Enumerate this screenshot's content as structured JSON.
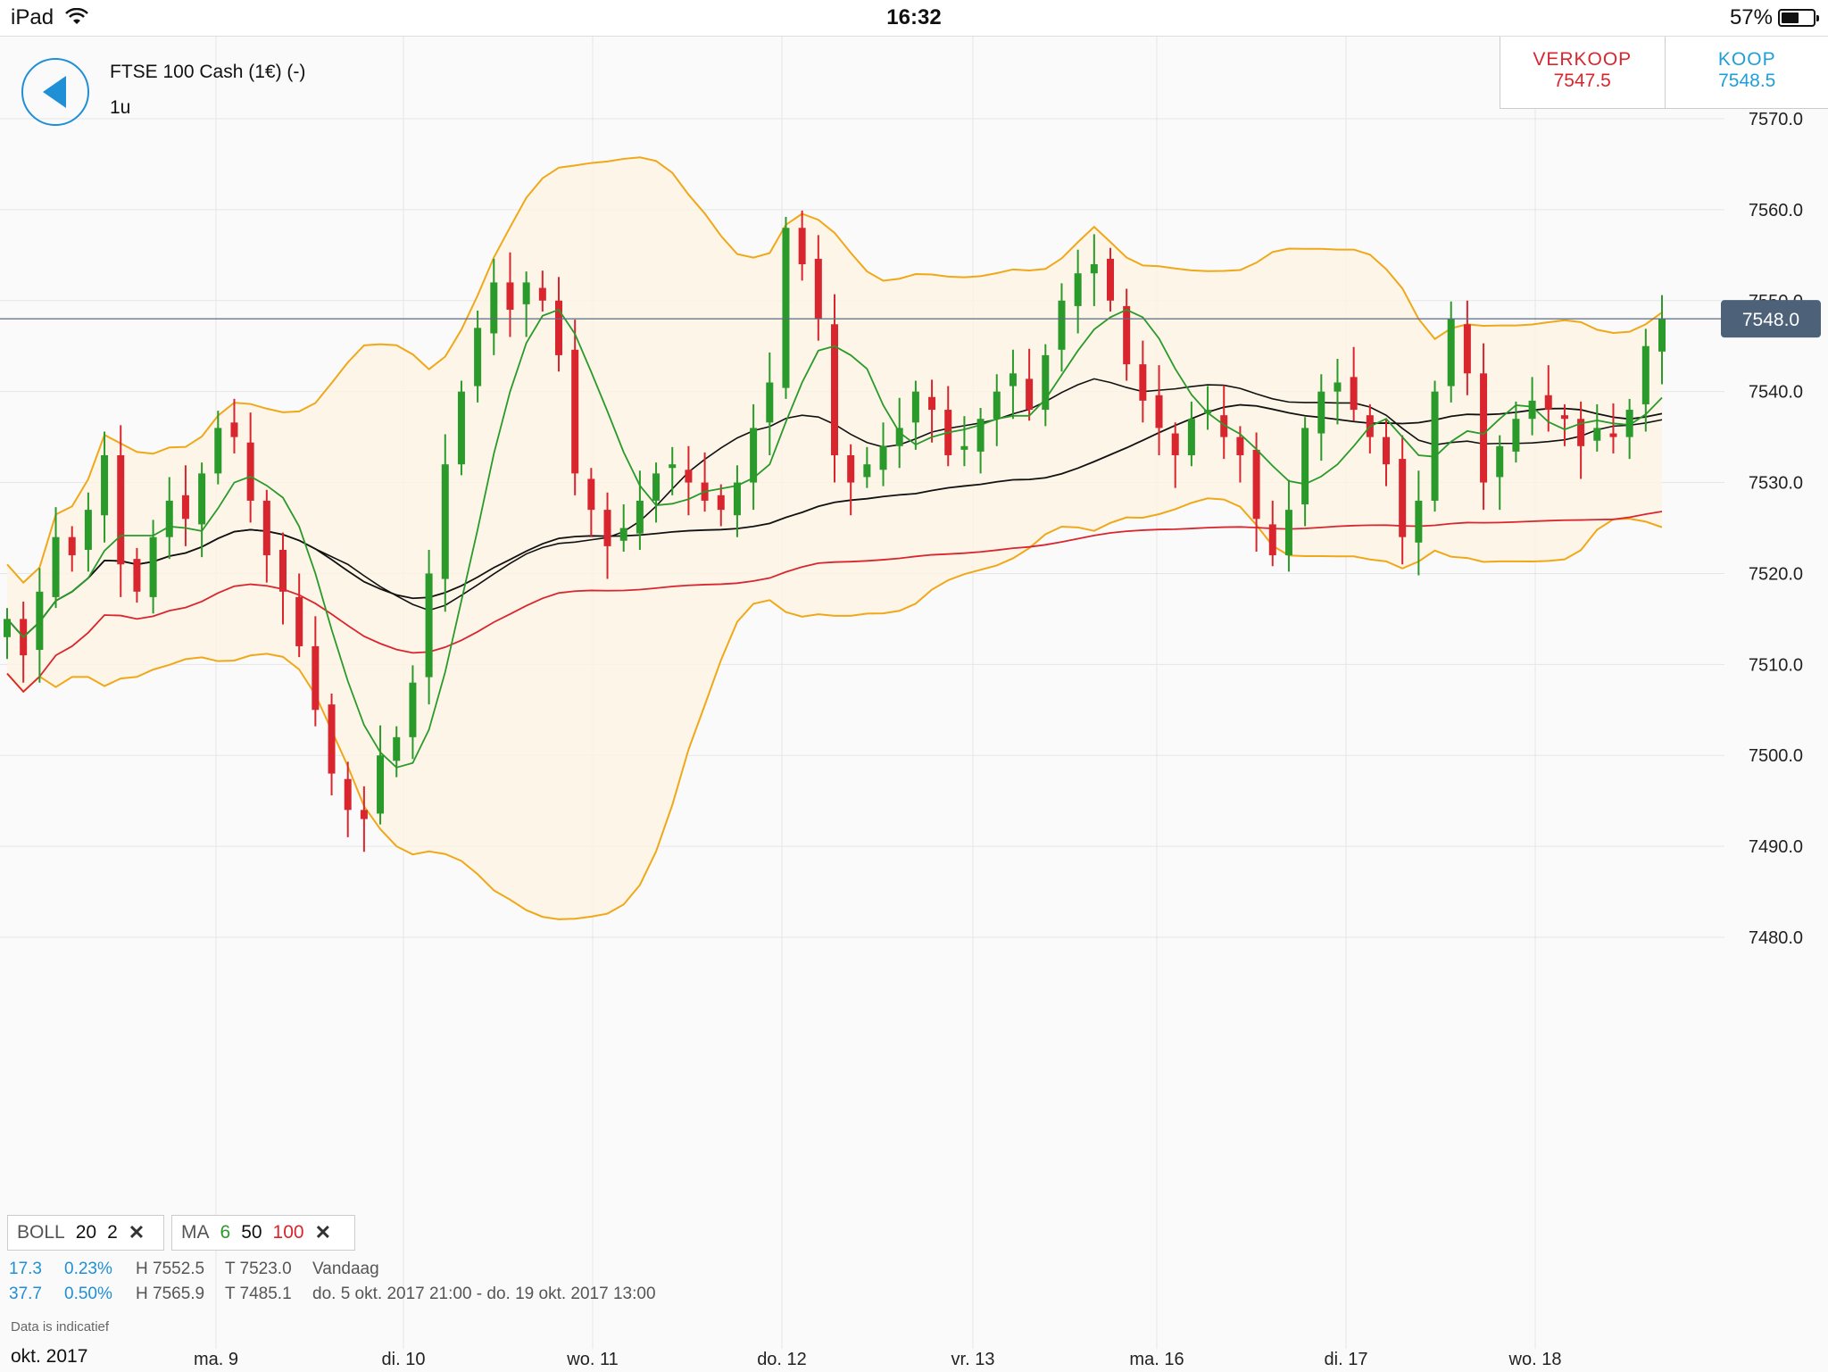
{
  "status_bar": {
    "device": "iPad",
    "time": "16:32",
    "battery": "57%",
    "battery_level": 0.57
  },
  "header": {
    "instrument": "FTSE 100 Cash (1€) (-)",
    "period": "1u",
    "sell": {
      "label": "VERKOOP",
      "price": "7547.5"
    },
    "buy": {
      "label": "KOOP",
      "price": "7548.5"
    }
  },
  "legend": {
    "boll": {
      "label": "BOLL",
      "p1": "20",
      "p2": "2"
    },
    "ma": {
      "label": "MA",
      "p1": "6",
      "p2": "50",
      "p3": "100"
    }
  },
  "stats": {
    "row1": {
      "change": "17.3",
      "pct": "0.23%",
      "high": "H 7552.5",
      "low": "T 7523.0",
      "span": "Vandaag"
    },
    "row2": {
      "change": "37.7",
      "pct": "0.50%",
      "high": "H 7565.9",
      "low": "T 7485.1",
      "span": "do. 5 okt. 2017 21:00 - do. 19 okt. 2017 13:00"
    }
  },
  "disclaimer": "Data is indicatief",
  "month_label": "okt. 2017",
  "colors": {
    "up": "#2a9a2a",
    "down": "#d9262e",
    "boll": "#f0a818",
    "ma6": "#2a9a2a",
    "ma50": "#111111",
    "ma100": "#d9262e",
    "sell": "#d9262e",
    "buy": "#1f9fd8"
  },
  "chart_data": {
    "type": "candlestick",
    "y_ticks": [
      "7570.0",
      "7560.0",
      "7550.0",
      "7540.0",
      "7530.0",
      "7520.0",
      "7510.0",
      "7500.0",
      "7490.0",
      "7480.0"
    ],
    "ylim": [
      7475,
      7575
    ],
    "x_ticks": [
      "ma. 9",
      "di. 10",
      "wo. 11",
      "do. 12",
      "vr. 13",
      "ma. 16",
      "di. 17",
      "wo. 18"
    ],
    "current_price": "7548.0",
    "close": [
      7515,
      7511,
      7518,
      7524,
      7522,
      7527,
      7533,
      7521,
      7518,
      7524,
      7528,
      7526,
      7531,
      7536,
      7535,
      7528,
      7522,
      7518,
      7512,
      7505,
      7498,
      7494,
      7493,
      7500,
      7502,
      7508,
      7520,
      7532,
      7540,
      7547,
      7552,
      7549,
      7552,
      7550,
      7544,
      7531,
      7527,
      7523,
      7525,
      7528,
      7531,
      7532,
      7530,
      7528,
      7527,
      7530,
      7536,
      7541,
      7558,
      7554,
      7548,
      7533,
      7530,
      7532,
      7534,
      7536,
      7540,
      7538,
      7533,
      7534,
      7537,
      7540,
      7542,
      7538,
      7544,
      7550,
      7553,
      7554,
      7550,
      7543,
      7539,
      7536,
      7533,
      7537,
      7538,
      7535,
      7533,
      7526,
      7522,
      7527,
      7536,
      7540,
      7541,
      7538,
      7535,
      7532,
      7524,
      7528,
      7540,
      7548,
      7542,
      7530,
      7534,
      7537,
      7539,
      7538,
      7537,
      7534,
      7536,
      7535,
      7538,
      7545,
      7548
    ]
  }
}
